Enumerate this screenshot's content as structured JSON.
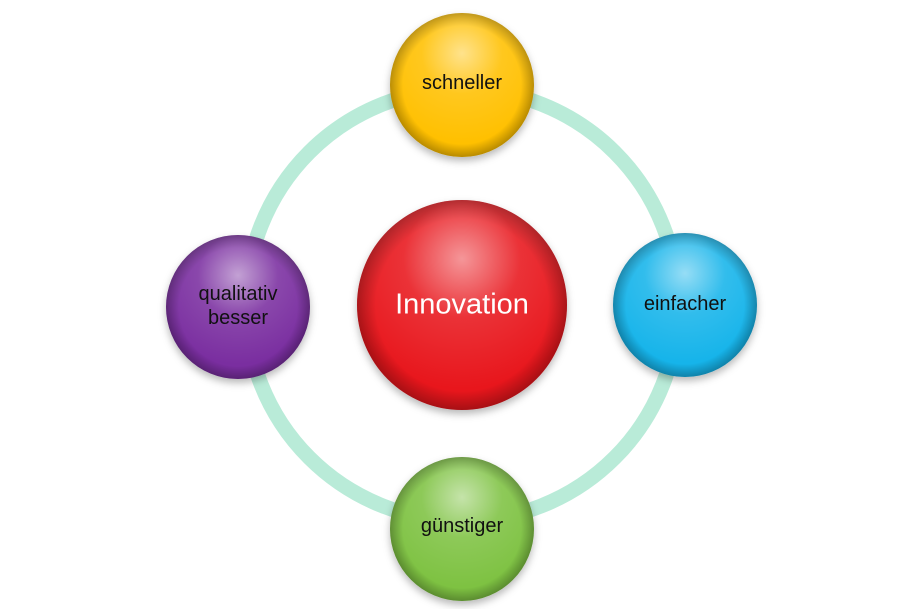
{
  "diagram": {
    "center": {
      "label": "Innovation",
      "color": "#e8141c"
    },
    "nodes": [
      {
        "id": "top",
        "lines": [
          "schneller"
        ],
        "color": "#ffc000"
      },
      {
        "id": "right",
        "lines": [
          "einfacher"
        ],
        "color": "#19b4ea"
      },
      {
        "id": "bottom",
        "lines": [
          "günstiger"
        ],
        "color": "#7ec242"
      },
      {
        "id": "left",
        "lines": [
          "qualitativ",
          "besser"
        ],
        "color": "#7a2ea0"
      }
    ],
    "ring_color": "#b9ebd8",
    "text_color": "#111111",
    "center_text_color": "#ffffff"
  }
}
